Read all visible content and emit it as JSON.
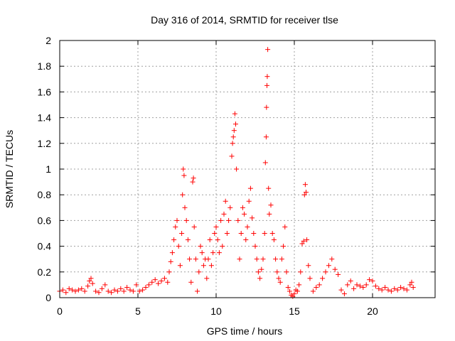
{
  "chart_data": {
    "type": "scatter",
    "title": "Day 316 of 2014, SRMTID for receiver tlse",
    "xlabel": "GPS time / hours",
    "ylabel": "SRMTID / TECUs",
    "xlim": [
      0,
      24
    ],
    "ylim": [
      0,
      2
    ],
    "xticks": [
      0,
      5,
      10,
      15,
      20
    ],
    "yticks": [
      0,
      0.2,
      0.4,
      0.6,
      0.8,
      1,
      1.2,
      1.4,
      1.6,
      1.8,
      2
    ],
    "ytick_labels": [
      "0",
      "0.2",
      "0.4",
      "0.6",
      "0.8",
      "1",
      "1.2",
      "1.4",
      "1.6",
      "1.8",
      "2"
    ],
    "grid": true,
    "marker": "plus",
    "marker_color": "#ff0000",
    "series": [
      {
        "name": "SRMTID",
        "points": [
          [
            0.0,
            0.05
          ],
          [
            0.2,
            0.06
          ],
          [
            0.4,
            0.04
          ],
          [
            0.6,
            0.07
          ],
          [
            0.8,
            0.06
          ],
          [
            1.0,
            0.05
          ],
          [
            1.2,
            0.06
          ],
          [
            1.4,
            0.07
          ],
          [
            1.6,
            0.05
          ],
          [
            1.8,
            0.09
          ],
          [
            1.9,
            0.13
          ],
          [
            2.0,
            0.15
          ],
          [
            2.1,
            0.11
          ],
          [
            2.3,
            0.05
          ],
          [
            2.5,
            0.04
          ],
          [
            2.7,
            0.07
          ],
          [
            2.9,
            0.1
          ],
          [
            3.1,
            0.05
          ],
          [
            3.3,
            0.04
          ],
          [
            3.5,
            0.06
          ],
          [
            3.7,
            0.05
          ],
          [
            3.9,
            0.07
          ],
          [
            4.1,
            0.05
          ],
          [
            4.3,
            0.08
          ],
          [
            4.5,
            0.06
          ],
          [
            4.7,
            0.05
          ],
          [
            4.9,
            0.1
          ],
          [
            5.1,
            0.05
          ],
          [
            5.3,
            0.06
          ],
          [
            5.5,
            0.08
          ],
          [
            5.7,
            0.1
          ],
          [
            5.9,
            0.12
          ],
          [
            6.1,
            0.14
          ],
          [
            6.3,
            0.11
          ],
          [
            6.5,
            0.13
          ],
          [
            6.7,
            0.15
          ],
          [
            6.9,
            0.12
          ],
          [
            7.0,
            0.2
          ],
          [
            7.1,
            0.28
          ],
          [
            7.2,
            0.35
          ],
          [
            7.3,
            0.45
          ],
          [
            7.4,
            0.55
          ],
          [
            7.5,
            0.6
          ],
          [
            7.6,
            0.4
          ],
          [
            7.7,
            0.25
          ],
          [
            7.8,
            0.5
          ],
          [
            7.85,
            0.8
          ],
          [
            7.9,
            1.0
          ],
          [
            7.95,
            0.95
          ],
          [
            8.0,
            0.7
          ],
          [
            8.1,
            0.6
          ],
          [
            8.2,
            0.45
          ],
          [
            8.3,
            0.3
          ],
          [
            8.4,
            0.12
          ],
          [
            8.5,
            0.9
          ],
          [
            8.55,
            0.93
          ],
          [
            8.6,
            0.55
          ],
          [
            8.7,
            0.3
          ],
          [
            8.8,
            0.05
          ],
          [
            8.9,
            0.2
          ],
          [
            9.0,
            0.4
          ],
          [
            9.1,
            0.35
          ],
          [
            9.2,
            0.25
          ],
          [
            9.3,
            0.3
          ],
          [
            9.4,
            0.15
          ],
          [
            9.5,
            0.3
          ],
          [
            9.6,
            0.45
          ],
          [
            9.7,
            0.25
          ],
          [
            9.8,
            0.35
          ],
          [
            9.9,
            0.5
          ],
          [
            10.0,
            0.55
          ],
          [
            10.1,
            0.45
          ],
          [
            10.2,
            0.35
          ],
          [
            10.3,
            0.6
          ],
          [
            10.4,
            0.4
          ],
          [
            10.5,
            0.65
          ],
          [
            10.6,
            0.75
          ],
          [
            10.7,
            0.5
          ],
          [
            10.8,
            0.6
          ],
          [
            10.9,
            0.7
          ],
          [
            11.0,
            1.1
          ],
          [
            11.05,
            1.2
          ],
          [
            11.1,
            1.25
          ],
          [
            11.15,
            1.3
          ],
          [
            11.2,
            1.43
          ],
          [
            11.25,
            1.35
          ],
          [
            11.3,
            1.0
          ],
          [
            11.4,
            0.6
          ],
          [
            11.5,
            0.3
          ],
          [
            11.6,
            0.5
          ],
          [
            11.7,
            0.7
          ],
          [
            11.8,
            0.65
          ],
          [
            11.9,
            0.45
          ],
          [
            12.0,
            0.55
          ],
          [
            12.1,
            0.75
          ],
          [
            12.2,
            0.85
          ],
          [
            12.3,
            0.62
          ],
          [
            12.4,
            0.5
          ],
          [
            12.5,
            0.4
          ],
          [
            12.6,
            0.3
          ],
          [
            12.7,
            0.2
          ],
          [
            12.8,
            0.15
          ],
          [
            12.9,
            0.22
          ],
          [
            13.0,
            0.3
          ],
          [
            13.1,
            0.5
          ],
          [
            13.15,
            1.05
          ],
          [
            13.2,
            1.25
          ],
          [
            13.22,
            1.48
          ],
          [
            13.25,
            1.65
          ],
          [
            13.27,
            1.72
          ],
          [
            13.3,
            1.93
          ],
          [
            13.35,
            0.85
          ],
          [
            13.4,
            0.65
          ],
          [
            13.5,
            0.72
          ],
          [
            13.6,
            0.5
          ],
          [
            13.7,
            0.45
          ],
          [
            13.8,
            0.3
          ],
          [
            13.9,
            0.2
          ],
          [
            14.0,
            0.15
          ],
          [
            14.1,
            0.12
          ],
          [
            14.2,
            0.3
          ],
          [
            14.3,
            0.4
          ],
          [
            14.4,
            0.55
          ],
          [
            14.5,
            0.2
          ],
          [
            14.6,
            0.08
          ],
          [
            14.7,
            0.05
          ],
          [
            14.8,
            0.02
          ],
          [
            14.9,
            0.01
          ],
          [
            15.0,
            0.03
          ],
          [
            15.1,
            0.06
          ],
          [
            15.2,
            0.05
          ],
          [
            15.3,
            0.1
          ],
          [
            15.4,
            0.2
          ],
          [
            15.5,
            0.42
          ],
          [
            15.6,
            0.44
          ],
          [
            15.65,
            0.8
          ],
          [
            15.7,
            0.88
          ],
          [
            15.75,
            0.82
          ],
          [
            15.8,
            0.45
          ],
          [
            15.9,
            0.25
          ],
          [
            16.0,
            0.15
          ],
          [
            16.2,
            0.05
          ],
          [
            16.4,
            0.08
          ],
          [
            16.6,
            0.1
          ],
          [
            16.8,
            0.15
          ],
          [
            17.0,
            0.2
          ],
          [
            17.2,
            0.25
          ],
          [
            17.4,
            0.3
          ],
          [
            17.6,
            0.22
          ],
          [
            17.8,
            0.18
          ],
          [
            18.0,
            0.06
          ],
          [
            18.2,
            0.03
          ],
          [
            18.4,
            0.1
          ],
          [
            18.6,
            0.13
          ],
          [
            18.8,
            0.07
          ],
          [
            19.0,
            0.1
          ],
          [
            19.2,
            0.09
          ],
          [
            19.4,
            0.08
          ],
          [
            19.6,
            0.1
          ],
          [
            19.8,
            0.14
          ],
          [
            20.0,
            0.13
          ],
          [
            20.2,
            0.09
          ],
          [
            20.4,
            0.07
          ],
          [
            20.6,
            0.06
          ],
          [
            20.8,
            0.08
          ],
          [
            21.0,
            0.06
          ],
          [
            21.2,
            0.05
          ],
          [
            21.4,
            0.07
          ],
          [
            21.6,
            0.06
          ],
          [
            21.8,
            0.08
          ],
          [
            22.0,
            0.07
          ],
          [
            22.2,
            0.06
          ],
          [
            22.4,
            0.1
          ],
          [
            22.5,
            0.12
          ],
          [
            22.6,
            0.08
          ]
        ]
      }
    ]
  }
}
